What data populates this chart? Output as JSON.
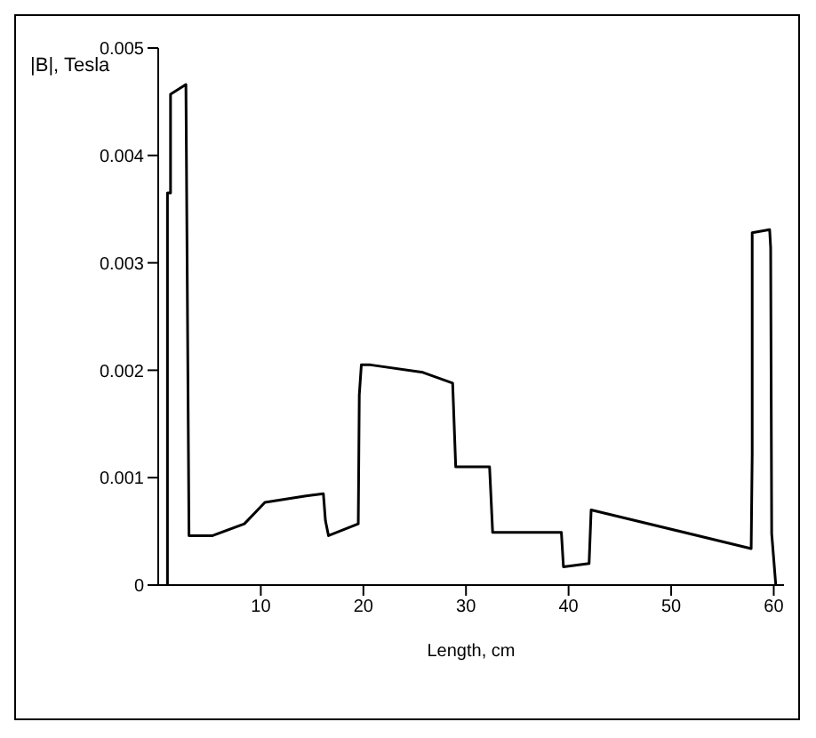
{
  "chart_data": {
    "type": "line",
    "xlabel": "Length, cm",
    "ylabel": "|B|, Tesla",
    "x": [
      0.9,
      0.9,
      1.2,
      1.2,
      2.7,
      3.0,
      5.3,
      8.4,
      10.4,
      14.4,
      16.1,
      16.3,
      16.6,
      19.5,
      19.6,
      19.8,
      20.7,
      25.8,
      28.7,
      29.0,
      32.3,
      32.6,
      39.3,
      39.5,
      42.0,
      42.2,
      57.8,
      57.9,
      57.9,
      59.6,
      59.7,
      59.8,
      60.2
    ],
    "series": [
      {
        "color": "#000000",
        "values": [
          0,
          0.00365,
          0.00365,
          0.00457,
          0.00466,
          0.00046,
          0.00046,
          0.00057,
          0.00077,
          0.00083,
          0.00085,
          0.0006,
          0.00046,
          0.00057,
          0.00177,
          0.00205,
          0.00205,
          0.00198,
          0.00188,
          0.0011,
          0.0011,
          0.00049,
          0.00049,
          0.00017,
          0.0002,
          0.0007,
          0.00034,
          0.00122,
          0.00328,
          0.00331,
          0.00314,
          0.00048,
          0
        ]
      }
    ],
    "xlim": [
      0,
      61
    ],
    "xticks": [
      10,
      20,
      30,
      40,
      50,
      60
    ],
    "ylim": [
      0,
      0.005
    ],
    "yticks": [
      0,
      0.001,
      0.002,
      0.003,
      0.004,
      0.005
    ],
    "grid": false,
    "legend": false,
    "marker": "none",
    "line_style": "solid"
  }
}
